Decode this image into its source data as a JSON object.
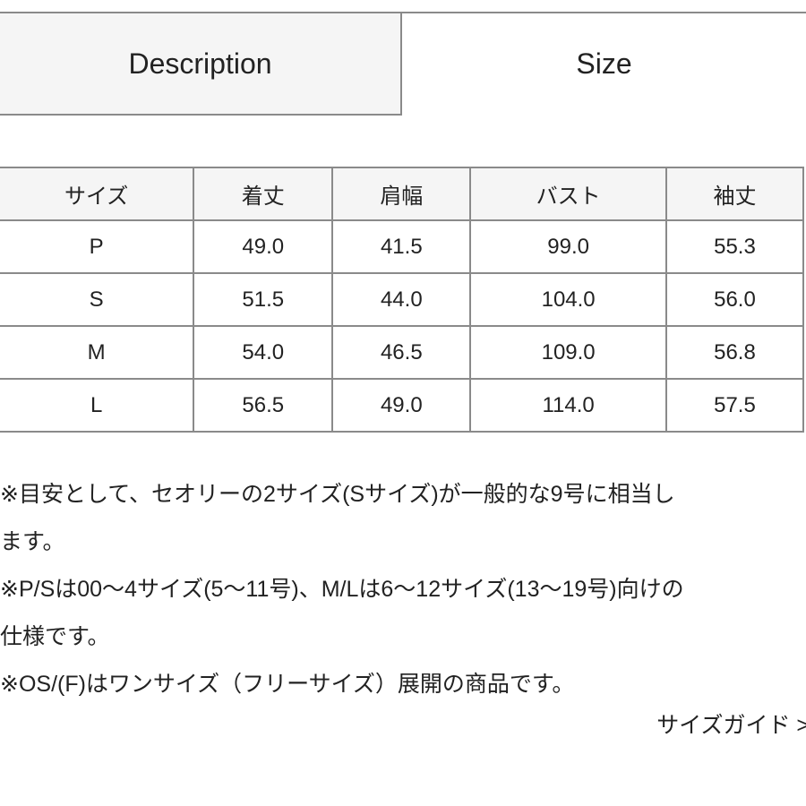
{
  "tabs": [
    {
      "label": "Description",
      "active": false
    },
    {
      "label": "Size",
      "active": true
    }
  ],
  "size_table": {
    "headers": [
      "サイズ",
      "着丈",
      "肩幅",
      "バスト",
      "袖丈"
    ],
    "rows": [
      [
        "P",
        "49.0",
        "41.5",
        "99.0",
        "55.3"
      ],
      [
        "S",
        "51.5",
        "44.0",
        "104.0",
        "56.0"
      ],
      [
        "M",
        "54.0",
        "46.5",
        "109.0",
        "56.8"
      ],
      [
        "L",
        "56.5",
        "49.0",
        "114.0",
        "57.5"
      ]
    ]
  },
  "notes": [
    "※目安として、セオリーの2サイズ(Sサイズ)が一般的な9号に相当し",
    "ます。",
    "※P/Sは00〜4サイズ(5〜11号)、M/Lは6〜12サイズ(13〜19号)向けの",
    "仕様です。",
    "※OS/(F)はワンサイズ（フリーサイズ）展開の商品です。"
  ],
  "size_guide_link": "サイズガイド >",
  "colors": {
    "border": "#8a8a8a",
    "inactive_tab_bg": "#f5f5f5",
    "header_bg": "#f5f5f5"
  }
}
